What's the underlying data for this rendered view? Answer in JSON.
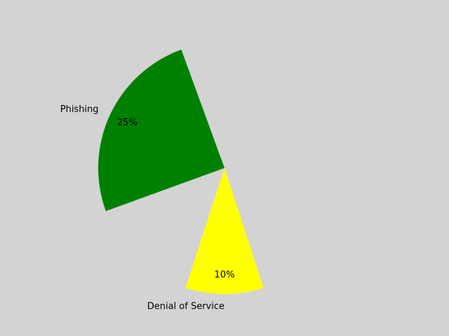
{
  "chart_data": {
    "type": "pie",
    "slices": [
      {
        "label": "Phishing",
        "value": 25,
        "display": "25%",
        "color": "#008000",
        "start_angle_deg": 110
      },
      {
        "label": "Denial of Service",
        "value": 10,
        "display": "10%",
        "color": "#ffff00",
        "start_angle_deg": 252
      }
    ],
    "background": "#d3d3d3",
    "legend": "none"
  }
}
